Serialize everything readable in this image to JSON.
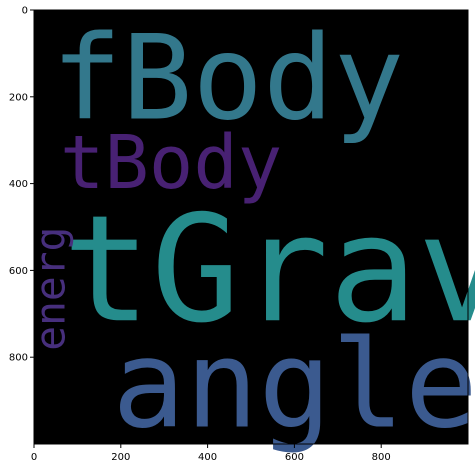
{
  "chart_data": {
    "type": "wordcloud",
    "title": "",
    "xlabel": "",
    "ylabel": "",
    "xlim": [
      0,
      1000
    ],
    "ylim": [
      1000,
      0
    ],
    "x_ticks": [
      0,
      200,
      400,
      600,
      800
    ],
    "y_ticks": [
      0,
      200,
      400,
      600,
      800
    ],
    "x_tick_labels": [
      "0",
      "200",
      "400",
      "600",
      "800"
    ],
    "y_tick_labels": [
      "0",
      "200",
      "400",
      "600",
      "800"
    ],
    "background_color": "#000000",
    "grid": false,
    "words": [
      {
        "text": "fBody",
        "x": 40,
        "y": 250,
        "size": 270,
        "color": "#33788c",
        "rotation": 0
      },
      {
        "text": "tBody",
        "x": 60,
        "y": 410,
        "size": 170,
        "color": "#482173",
        "rotation": 0
      },
      {
        "text": "tGrav",
        "x": 65,
        "y": 715,
        "size": 340,
        "color": "#258c8c",
        "rotation": 0
      },
      {
        "text": "angle",
        "x": 180,
        "y": 960,
        "size": 280,
        "color": "#3b5a8f",
        "rotation": 0
      },
      {
        "text": "energ",
        "x": 70,
        "y": 785,
        "size": 95,
        "color": "#472f7d",
        "rotation": -90
      }
    ]
  }
}
